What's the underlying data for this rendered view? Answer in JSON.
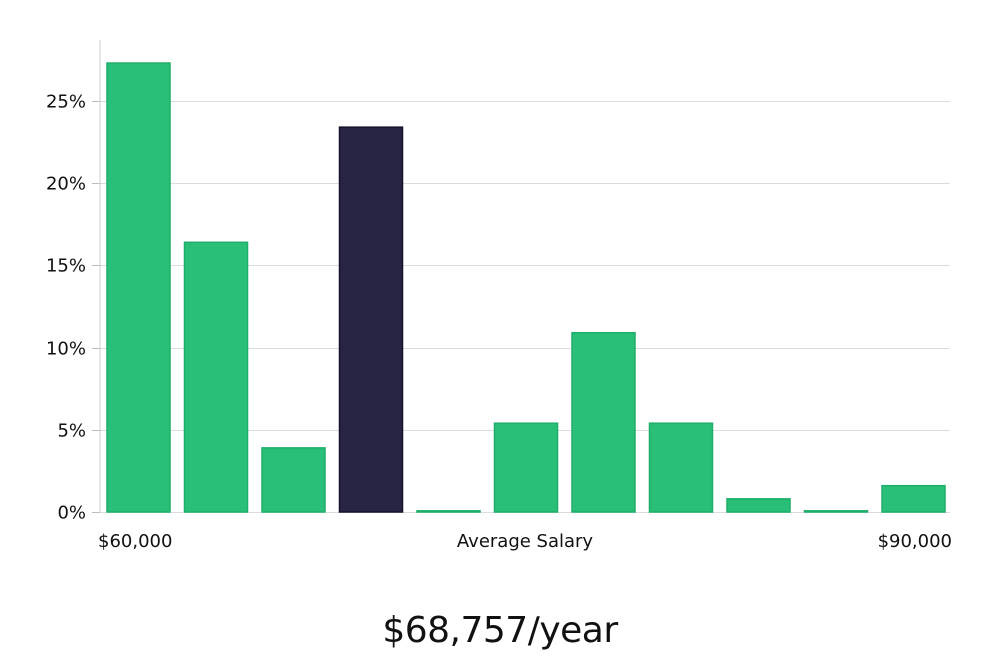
{
  "colors": {
    "bar": "#2abf78",
    "bar_stroke": "#1fae69",
    "highlight": "#282544",
    "highlight_stroke": "#14122b"
  },
  "chart_data": {
    "type": "bar",
    "categories": [
      "1",
      "2",
      "3",
      "4",
      "5",
      "6",
      "7",
      "8",
      "9",
      "10",
      "11"
    ],
    "values": [
      27.3,
      16.4,
      3.9,
      23.4,
      0.0,
      5.4,
      10.9,
      5.4,
      0.8,
      0.0,
      1.6
    ],
    "highlight_index": 3,
    "ylim": [
      0,
      28.7
    ],
    "yticks": [
      {
        "value": 0,
        "label": "0%"
      },
      {
        "value": 5,
        "label": "5%"
      },
      {
        "value": 10,
        "label": "10%"
      },
      {
        "value": 15,
        "label": "15%"
      },
      {
        "value": 20,
        "label": "20%"
      },
      {
        "value": 25,
        "label": "25%"
      }
    ],
    "x_min_label": "$60,000",
    "xlabel": "Average Salary",
    "x_max_label": "$90,000",
    "grid": true
  },
  "summary": {
    "salary_text": "$68,757/year"
  }
}
